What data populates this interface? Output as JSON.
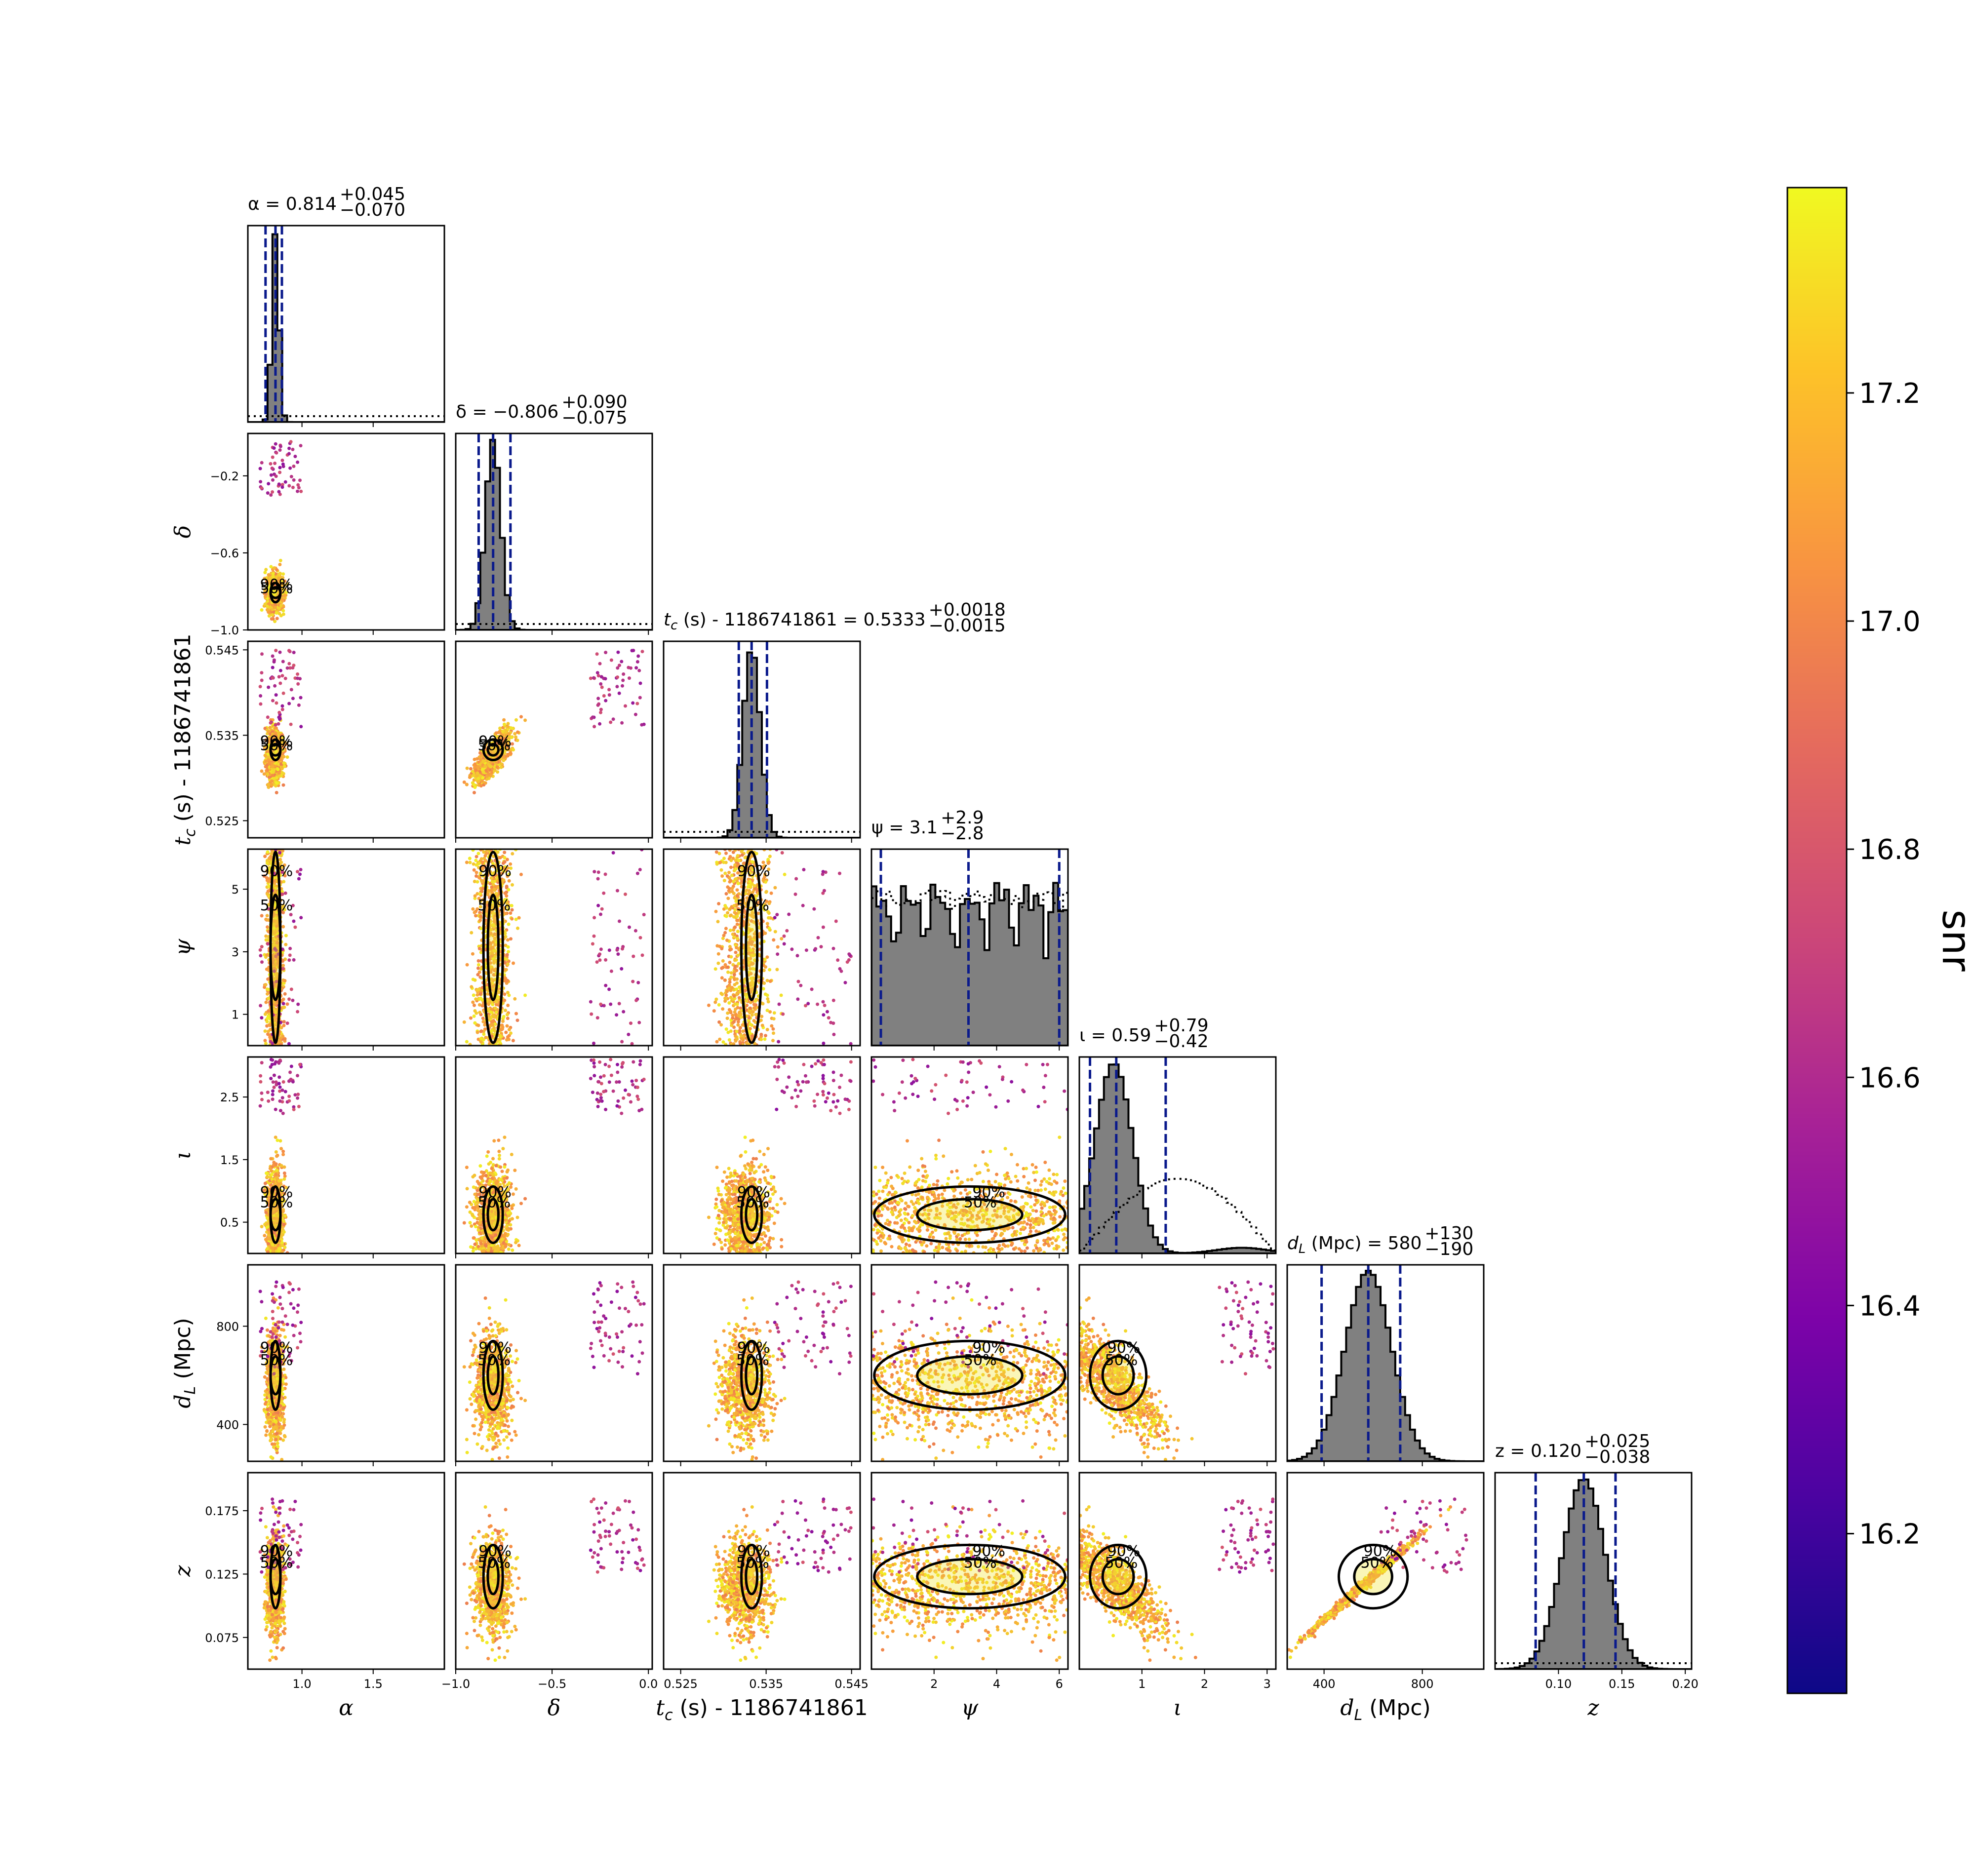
{
  "chart_data": {
    "type": "corner",
    "parameters": [
      {
        "key": "alpha",
        "label": "α",
        "range": [
          0.62,
          2.0
        ],
        "ticks": [
          1.0,
          1.5
        ],
        "tick_labels": [
          "1.0",
          "1.5"
        ],
        "median": 0.814,
        "plus": "+0.045",
        "minus": "−0.070",
        "title": "α = 0.814",
        "hist_peak_rel": 0.05,
        "hist_sigma": 0.025,
        "quantiles": [
          0.744,
          0.814,
          0.859
        ],
        "prior": "flat-low"
      },
      {
        "key": "delta",
        "label": "δ",
        "range": [
          -1.0,
          0.02
        ],
        "ticks": [
          -1.0,
          -0.5,
          0.0
        ],
        "tick_labels": [
          "−1.0",
          "−0.5",
          "0.0"
        ],
        "yticks": [
          -0.2,
          -0.6,
          -1.0
        ],
        "ytick_labels": [
          "−0.2",
          "−0.6",
          "−1.0"
        ],
        "median": -0.806,
        "plus": "+0.090",
        "minus": "−0.075",
        "title": "δ = −0.806",
        "hist_sigma": 0.04,
        "quantiles": [
          -0.881,
          -0.806,
          -0.716
        ],
        "prior": "flat-low"
      },
      {
        "key": "tc",
        "label": "t",
        "label_sub": "c",
        "label_rest": " (s) - 1186741861",
        "range": [
          0.523,
          0.546
        ],
        "ticks": [
          0.525,
          0.535,
          0.545
        ],
        "tick_labels": [
          "0.525",
          "0.535",
          "0.545"
        ],
        "median": 0.5333,
        "plus": "+0.0018",
        "minus": "−0.0015",
        "title_prefix": "t",
        "title_sub": "c",
        "title_rest": " (s) - 1186741861 = 0.5333",
        "hist_sigma": 0.001,
        "quantiles": [
          0.5318,
          0.5333,
          0.5351
        ],
        "prior": "flat-low"
      },
      {
        "key": "psi",
        "label": "ψ",
        "range": [
          0.0,
          6.28
        ],
        "ticks": [
          2,
          4,
          6
        ],
        "tick_labels": [
          "2",
          "4",
          "6"
        ],
        "yticks": [
          1,
          3,
          5
        ],
        "ytick_labels": [
          "1",
          "3",
          "5"
        ],
        "median": 3.1,
        "plus": "+2.9",
        "minus": "−2.8",
        "title": "ψ = 3.1",
        "quantiles": [
          0.3,
          3.1,
          6.0
        ],
        "prior": "uniform"
      },
      {
        "key": "iota",
        "label": "ι",
        "range": [
          0.0,
          3.14
        ],
        "ticks": [
          1,
          2,
          3
        ],
        "tick_labels": [
          "1",
          "2",
          "3"
        ],
        "yticks": [
          0.5,
          1.5,
          2.5
        ],
        "ytick_labels": [
          "0.5",
          "1.5",
          "2.5"
        ],
        "median": 0.59,
        "plus": "+0.79",
        "minus": "−0.42",
        "title": "ι = 0.59",
        "quantiles": [
          0.17,
          0.59,
          1.38
        ],
        "prior": "sine"
      },
      {
        "key": "dL",
        "label": "d",
        "label_sub": "L",
        "label_rest": " (Mpc)",
        "range": [
          250,
          1050
        ],
        "ticks": [
          400,
          800
        ],
        "tick_labels": [
          "400",
          "800"
        ],
        "median": 580,
        "plus": "+130",
        "minus": "−190",
        "title_prefix": "d",
        "title_sub": "L",
        "title_rest": " (Mpc) = 580",
        "hist_sigma": 95,
        "quantiles": [
          390,
          580,
          710
        ],
        "prior": "none"
      },
      {
        "key": "z",
        "label": "z",
        "range": [
          0.05,
          0.205
        ],
        "ticks": [
          0.1,
          0.15,
          0.2
        ],
        "tick_labels": [
          "0.10",
          "0.15",
          "0.20"
        ],
        "yticks": [
          0.075,
          0.125,
          0.175
        ],
        "ytick_labels": [
          "0.075",
          "0.125",
          "0.175"
        ],
        "median": 0.12,
        "plus": "+0.025",
        "minus": "−0.038",
        "title": "z = 0.120",
        "hist_sigma": 0.017,
        "quantiles": [
          0.082,
          0.12,
          0.145
        ],
        "prior": "flat-low"
      }
    ],
    "contour_levels": [
      "50%",
      "90%"
    ],
    "colorbar": {
      "label": "snr",
      "range": [
        16.06,
        17.38
      ],
      "ticks": [
        16.2,
        16.4,
        16.6,
        16.8,
        17.0,
        17.2
      ],
      "tick_labels": [
        "16.2",
        "16.4",
        "16.6",
        "16.8",
        "17.0",
        "17.2"
      ],
      "colormap": "plasma"
    },
    "colors": {
      "hist_fill": "#808080",
      "quantile_line": "#0a1a8c",
      "contour": "#000000",
      "prior": "#000000"
    }
  }
}
